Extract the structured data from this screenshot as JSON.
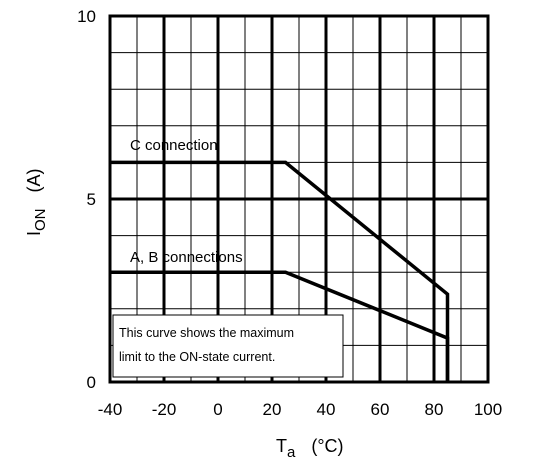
{
  "chart_data": {
    "type": "line",
    "xlim": [
      -40,
      100
    ],
    "ylim": [
      0,
      10
    ],
    "x_major_ticks": [
      -40,
      -20,
      0,
      20,
      40,
      60,
      80,
      100
    ],
    "x_minor_step": 10,
    "y_major_ticks": [
      0,
      5,
      10
    ],
    "y_minor_step": 1,
    "xlabel": {
      "main": "T",
      "sub": "a",
      "unit": "(°C)"
    },
    "ylabel": {
      "main": "I",
      "sub": "ON",
      "unit": "(A)"
    },
    "grid": true,
    "series": [
      {
        "name": "C connection",
        "x": [
          -40,
          25,
          85,
          85
        ],
        "y": [
          6,
          6,
          2.4,
          0
        ]
      },
      {
        "name": "A, B connections",
        "x": [
          -40,
          25,
          85,
          85
        ],
        "y": [
          3,
          3,
          1.2,
          0
        ]
      }
    ],
    "annotation": {
      "lines": [
        "This curve shows the maximum",
        "limit to the ON-state current."
      ]
    }
  }
}
